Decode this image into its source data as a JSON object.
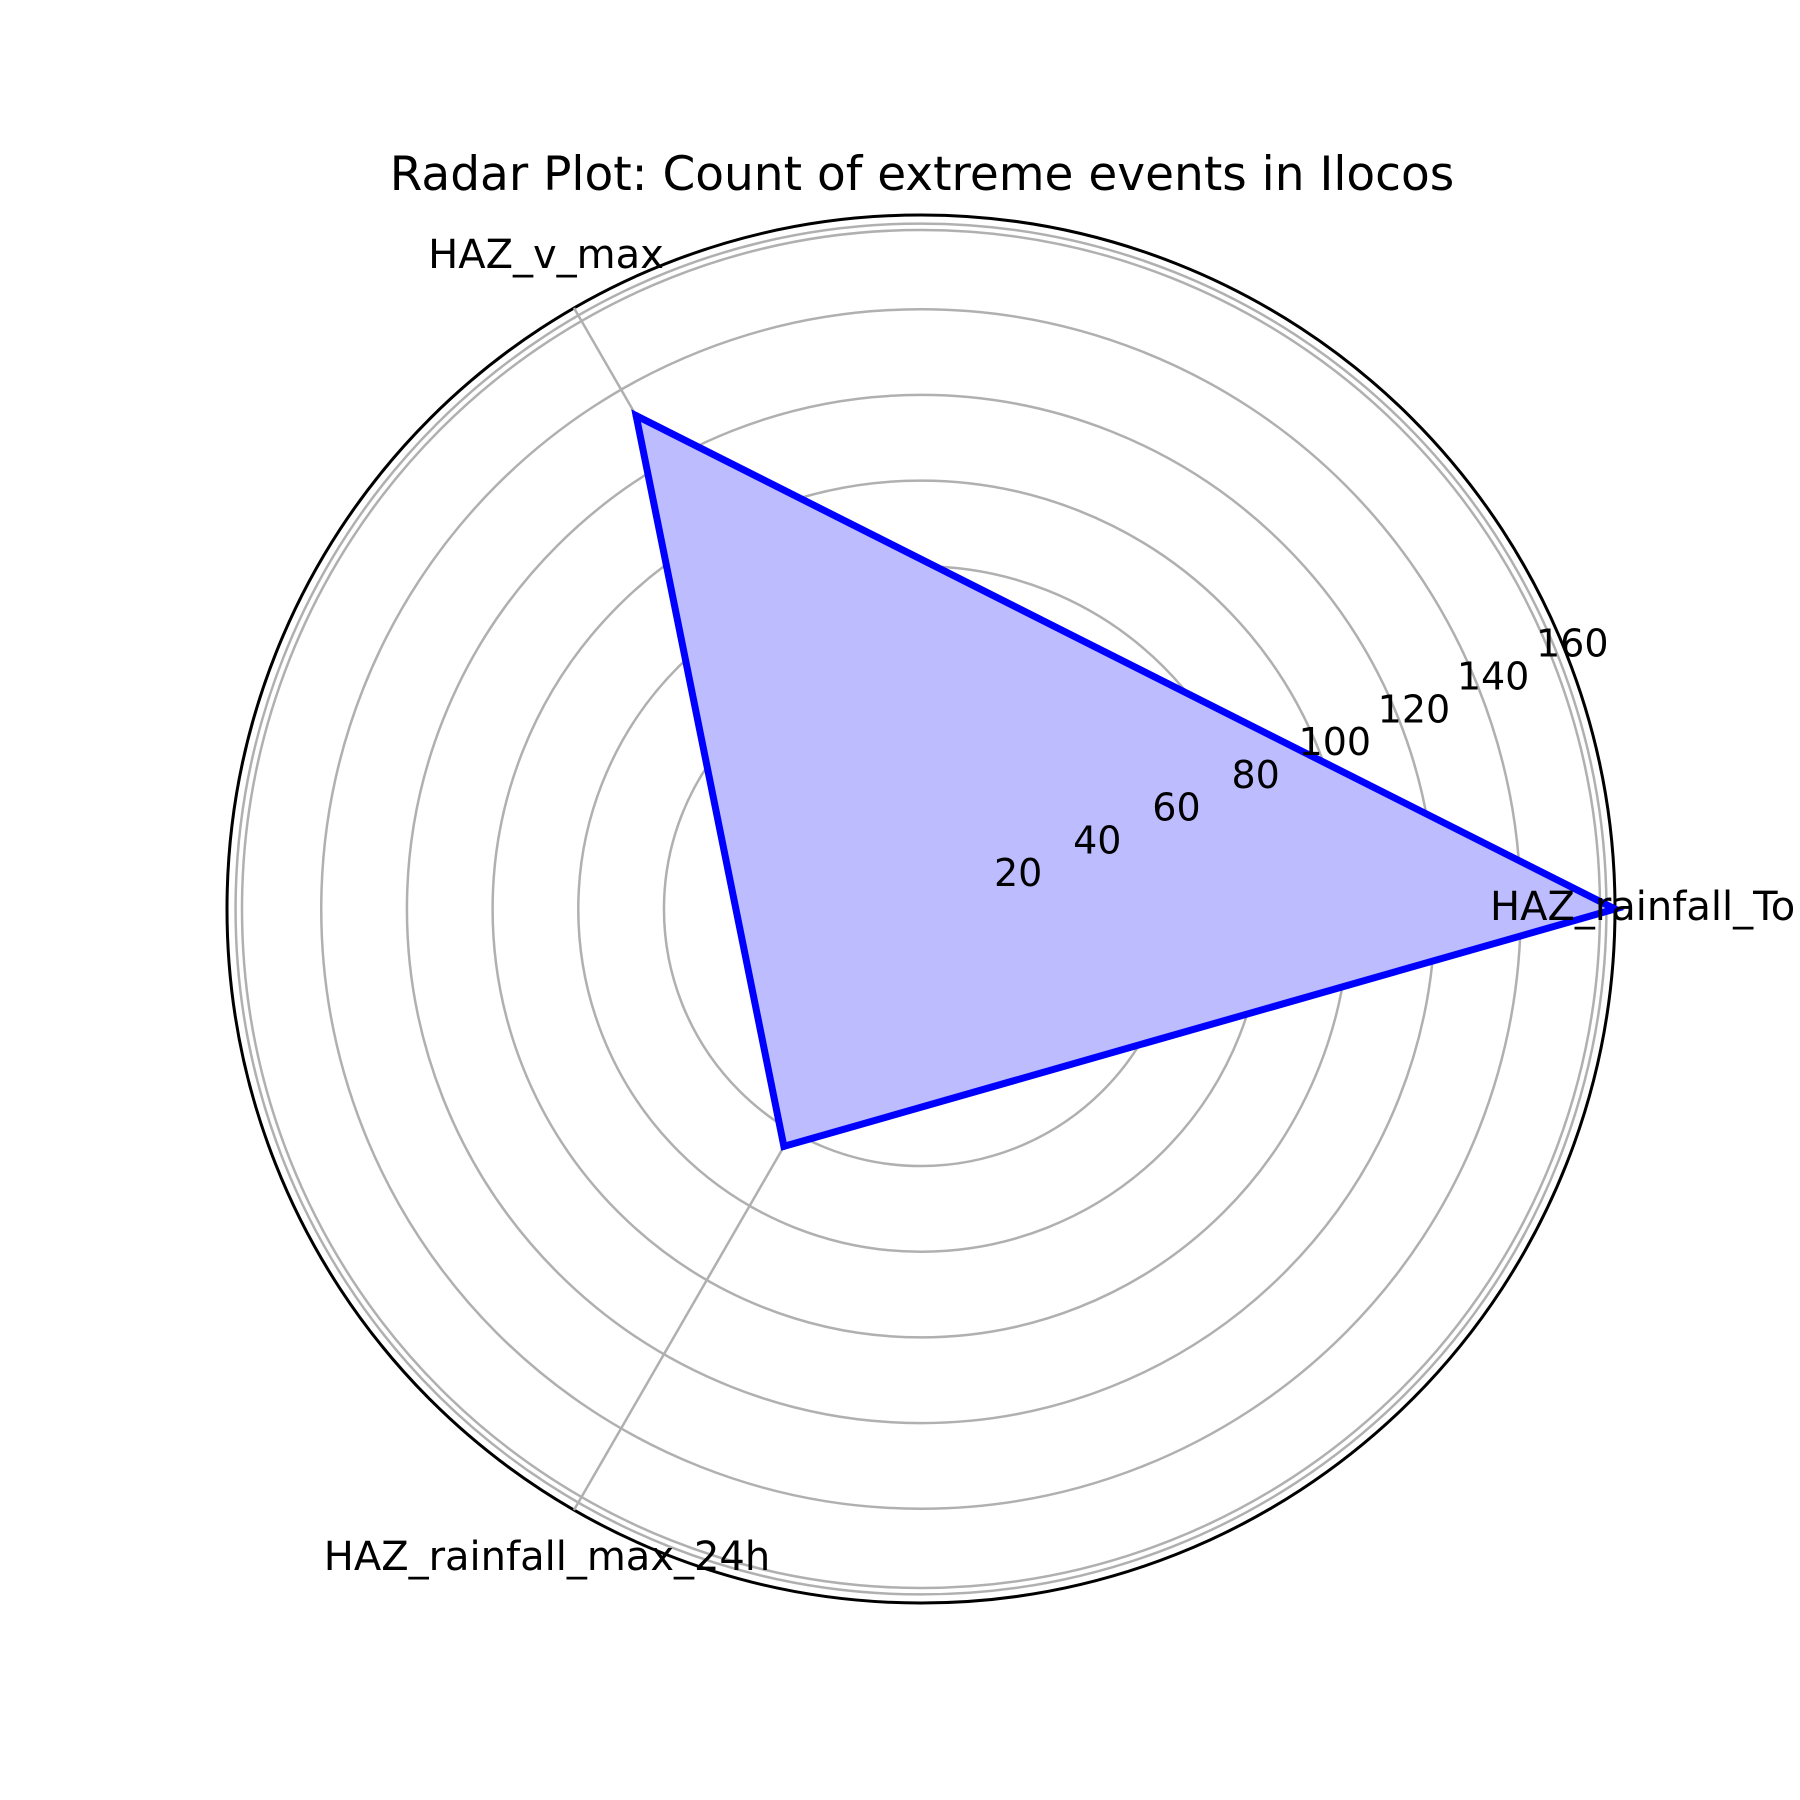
{
  "chart_data": {
    "type": "radar",
    "title": "Radar Plot: Count of extreme events in Ilocos",
    "categories": [
      "HAZ_rainfall_Total",
      "HAZ_v_max",
      "HAZ_rainfall_max_24h"
    ],
    "category_display": [
      "HAZ_rainfall_To",
      "HAZ_v_max",
      "HAZ_rainfall_max_24h"
    ],
    "values": [
      162,
      133,
      64
    ],
    "rlim": [
      0,
      162
    ],
    "r_ticks": [
      20,
      40,
      60,
      80,
      100,
      120,
      140,
      160
    ],
    "r_tick_labels": [
      "20",
      "40",
      "60",
      "80",
      "100",
      "120",
      "140",
      "160"
    ],
    "grid": true,
    "colors": {
      "line": "#0000ff",
      "fill": "#bcbcff",
      "grid": "#b0b0b0",
      "frame": "#000000"
    }
  }
}
